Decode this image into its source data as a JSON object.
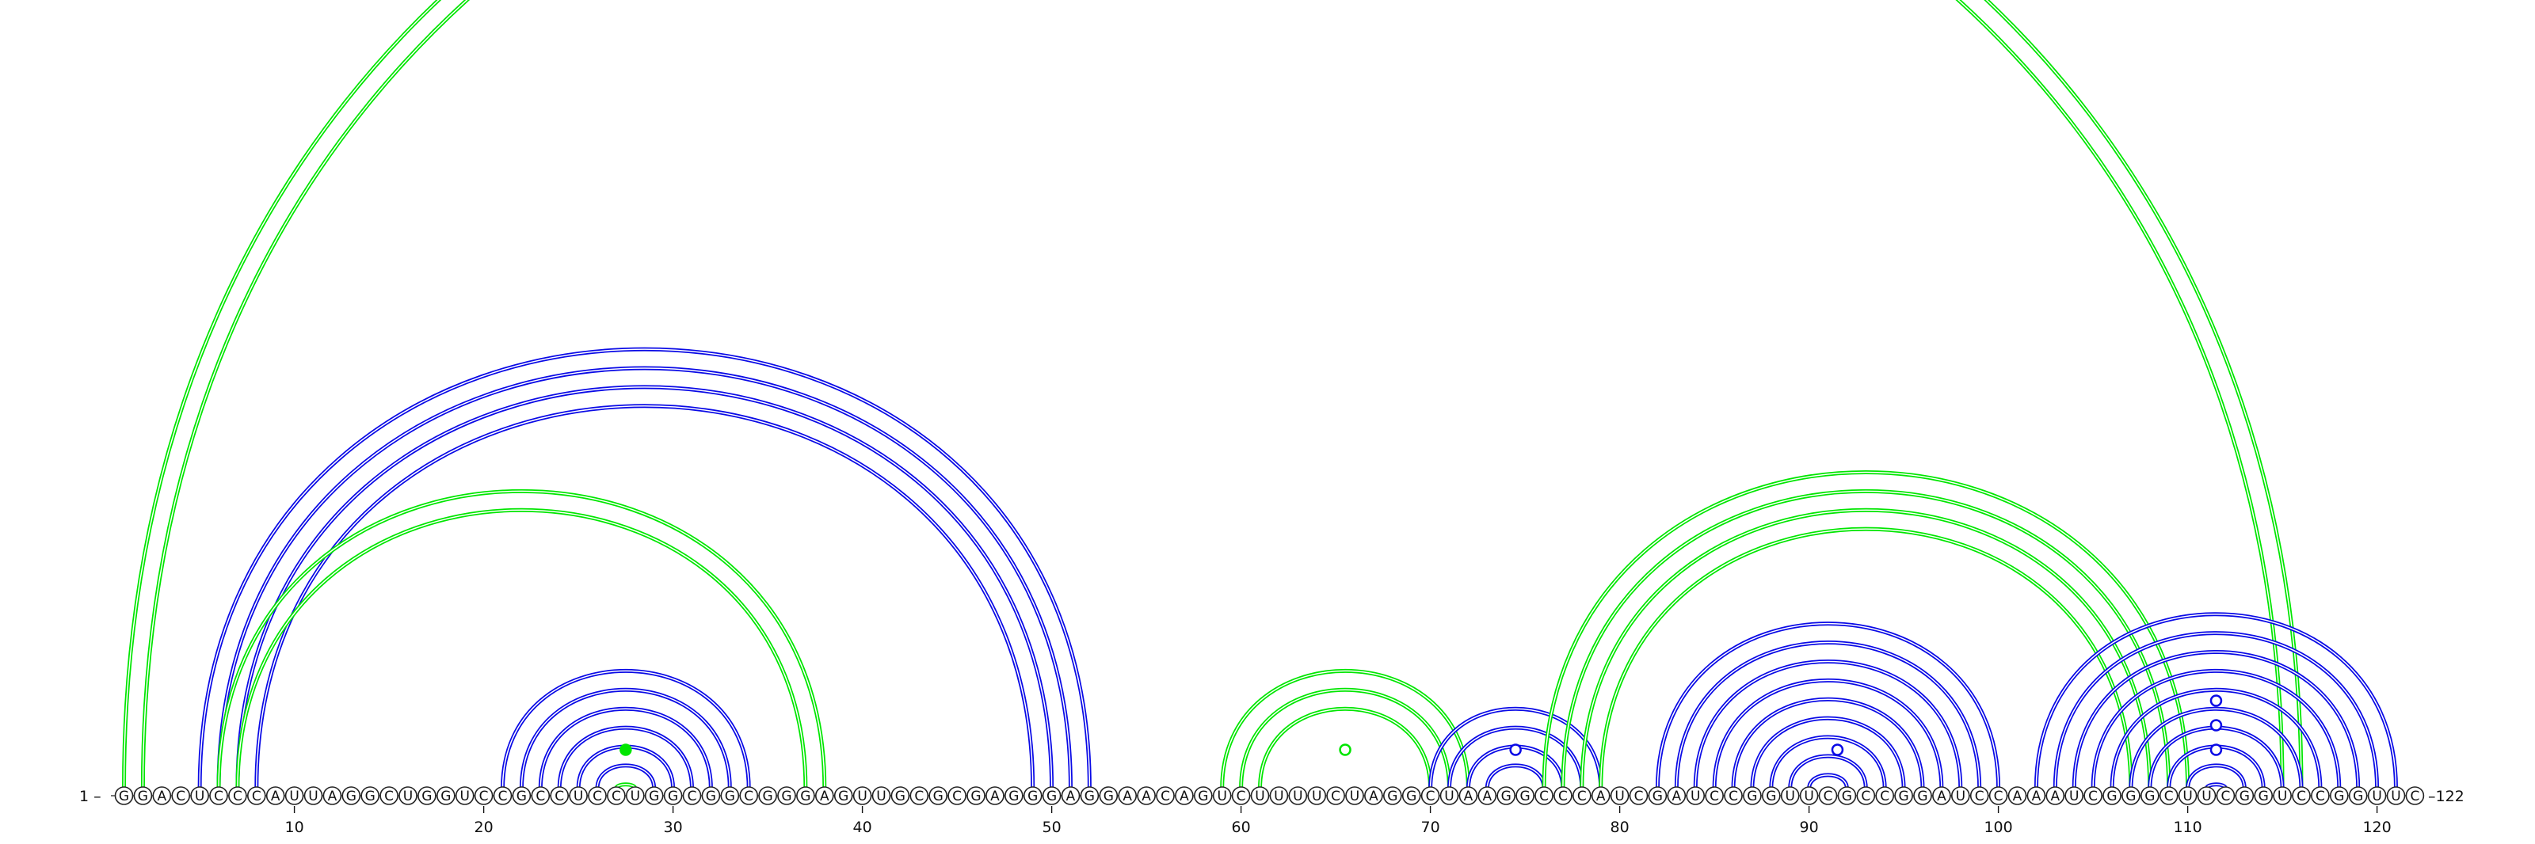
{
  "diagram": {
    "sequence": "GGACUCCCAUUAGGCUGGUCCGCCUCCUGGCGGCGGGAGUUGCGCGAGGGAGGAACAGUCUUUUCUAGGCUAAGGCCCAUCGAUCCGGUUCGCCGGAUCCAAAUCGGGCUUCGGUCCGGUUC",
    "start_label": "1 –",
    "end_label": "–122",
    "ticks": [
      "10",
      "20",
      "30",
      "40",
      "50",
      "60",
      "70",
      "80",
      "90",
      "100",
      "110",
      "120"
    ],
    "colors": {
      "blue": "#0a0ae6",
      "green": "#00e600"
    },
    "pair_groups": [
      {
        "color": "blue",
        "pairs": [
          [
            5,
            52
          ],
          [
            6,
            51
          ],
          [
            7,
            50
          ],
          [
            8,
            49
          ]
        ]
      },
      {
        "color": "blue",
        "pairs": [
          [
            21,
            34
          ],
          [
            22,
            33
          ],
          [
            23,
            32
          ],
          [
            24,
            31
          ],
          [
            25,
            30
          ],
          [
            26,
            29
          ]
        ]
      },
      {
        "color": "green",
        "pairs": [
          [
            1,
            116
          ],
          [
            2,
            115
          ]
        ]
      },
      {
        "color": "green",
        "pairs": [
          [
            6,
            38
          ],
          [
            7,
            37
          ]
        ]
      },
      {
        "color": "green",
        "pairs": [
          [
            27,
            28
          ]
        ]
      },
      {
        "color": "green",
        "pairs": [
          [
            59,
            72
          ],
          [
            60,
            71
          ],
          [
            61,
            70
          ]
        ]
      },
      {
        "color": "blue",
        "pairs": [
          [
            70,
            79
          ],
          [
            71,
            78
          ],
          [
            72,
            77
          ],
          [
            73,
            76
          ]
        ]
      },
      {
        "color": "green",
        "pairs": [
          [
            76,
            110
          ],
          [
            77,
            109
          ],
          [
            78,
            108
          ],
          [
            79,
            107
          ]
        ]
      },
      {
        "color": "blue",
        "pairs": [
          [
            82,
            100
          ],
          [
            83,
            99
          ],
          [
            84,
            98
          ],
          [
            85,
            97
          ],
          [
            86,
            96
          ],
          [
            87,
            95
          ],
          [
            88,
            94
          ],
          [
            89,
            93
          ],
          [
            90,
            92
          ]
        ]
      },
      {
        "color": "blue",
        "pairs": [
          [
            102,
            121
          ],
          [
            103,
            120
          ],
          [
            104,
            119
          ],
          [
            105,
            118
          ],
          [
            106,
            117
          ],
          [
            107,
            116
          ],
          [
            108,
            115
          ],
          [
            109,
            114
          ],
          [
            110,
            113
          ],
          [
            111,
            112
          ]
        ]
      }
    ],
    "markers": [
      {
        "color": "green",
        "filled": true,
        "between": [
          27,
          28
        ]
      },
      {
        "color": "green",
        "filled": false,
        "between": [
          65,
          66
        ]
      },
      {
        "color": "blue",
        "filled": false,
        "between": [
          74,
          75
        ]
      },
      {
        "color": "blue",
        "filled": false,
        "between": [
          91,
          92
        ]
      },
      {
        "color": "blue",
        "filled": false,
        "between": [
          111,
          112
        ]
      },
      {
        "color": "blue",
        "filled": false,
        "between": [
          111,
          112
        ]
      },
      {
        "color": "blue",
        "filled": false,
        "between": [
          111,
          112
        ]
      }
    ]
  }
}
